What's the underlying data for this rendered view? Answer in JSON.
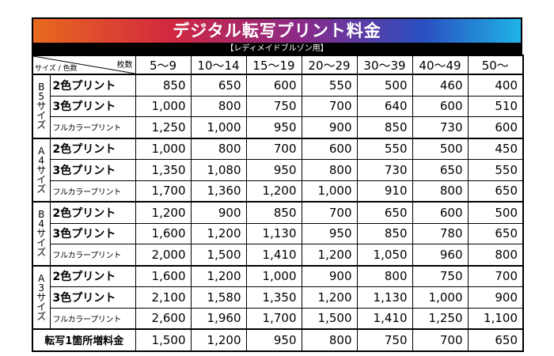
{
  "title": "デジタル転写プリント料金",
  "subtitle": "【レディメイドブルゾン用】",
  "header": {
    "size_color_label": "サイズ / 色数",
    "count_label": "枚数",
    "columns": [
      "5〜9",
      "10〜14",
      "15〜19",
      "20〜29",
      "30〜39",
      "40〜49",
      "50〜"
    ]
  },
  "groups": [
    {
      "size_chars": [
        "B",
        "5",
        "サ",
        "イ",
        "ズ"
      ],
      "rows": [
        {
          "label": "2色プリント",
          "small": false,
          "values": [
            "850",
            "650",
            "600",
            "550",
            "500",
            "460",
            "400"
          ]
        },
        {
          "label": "3色プリント",
          "small": false,
          "values": [
            "1,000",
            "800",
            "750",
            "700",
            "640",
            "600",
            "510"
          ]
        },
        {
          "label": "フルカラープリント",
          "small": true,
          "values": [
            "1,250",
            "1,000",
            "950",
            "900",
            "850",
            "730",
            "600"
          ]
        }
      ]
    },
    {
      "size_chars": [
        "A",
        "4",
        "サ",
        "イ",
        "ズ"
      ],
      "rows": [
        {
          "label": "2色プリント",
          "small": false,
          "values": [
            "1,000",
            "800",
            "700",
            "600",
            "550",
            "500",
            "450"
          ]
        },
        {
          "label": "3色プリント",
          "small": false,
          "values": [
            "1,350",
            "1,080",
            "950",
            "800",
            "730",
            "650",
            "550"
          ]
        },
        {
          "label": "フルカラープリント",
          "small": true,
          "values": [
            "1,700",
            "1,360",
            "1,200",
            "1,000",
            "910",
            "800",
            "650"
          ]
        }
      ]
    },
    {
      "size_chars": [
        "B",
        "4",
        "サ",
        "イ",
        "ズ"
      ],
      "rows": [
        {
          "label": "2色プリント",
          "small": false,
          "values": [
            "1,200",
            "900",
            "850",
            "700",
            "650",
            "600",
            "500"
          ]
        },
        {
          "label": "3色プリント",
          "small": false,
          "values": [
            "1,600",
            "1,200",
            "1,130",
            "950",
            "850",
            "780",
            "650"
          ]
        },
        {
          "label": "フルカラープリント",
          "small": true,
          "values": [
            "2,000",
            "1,500",
            "1,410",
            "1,200",
            "1,050",
            "960",
            "800"
          ]
        }
      ]
    },
    {
      "size_chars": [
        "A",
        "3",
        "サ",
        "イ",
        "ズ"
      ],
      "rows": [
        {
          "label": "2色プリント",
          "small": false,
          "values": [
            "1,600",
            "1,200",
            "1,000",
            "900",
            "800",
            "750",
            "700"
          ]
        },
        {
          "label": "3色プリント",
          "small": false,
          "values": [
            "2,100",
            "1,580",
            "1,350",
            "1,200",
            "1,130",
            "1,000",
            "900"
          ]
        },
        {
          "label": "フルカラープリント",
          "small": true,
          "values": [
            "2,600",
            "1,960",
            "1,700",
            "1,500",
            "1,410",
            "1,250",
            "1,100"
          ]
        }
      ]
    }
  ],
  "footer": {
    "label": "転写1箇所増料金",
    "values": [
      "1,500",
      "1,200",
      "950",
      "800",
      "750",
      "700",
      "650"
    ]
  },
  "colors": {
    "gradient": [
      "#e86a1e",
      "#d2283f",
      "#8a2a8a",
      "#2a4fc0",
      "#1fb3e6"
    ],
    "subtitle_bg": "#000000"
  }
}
